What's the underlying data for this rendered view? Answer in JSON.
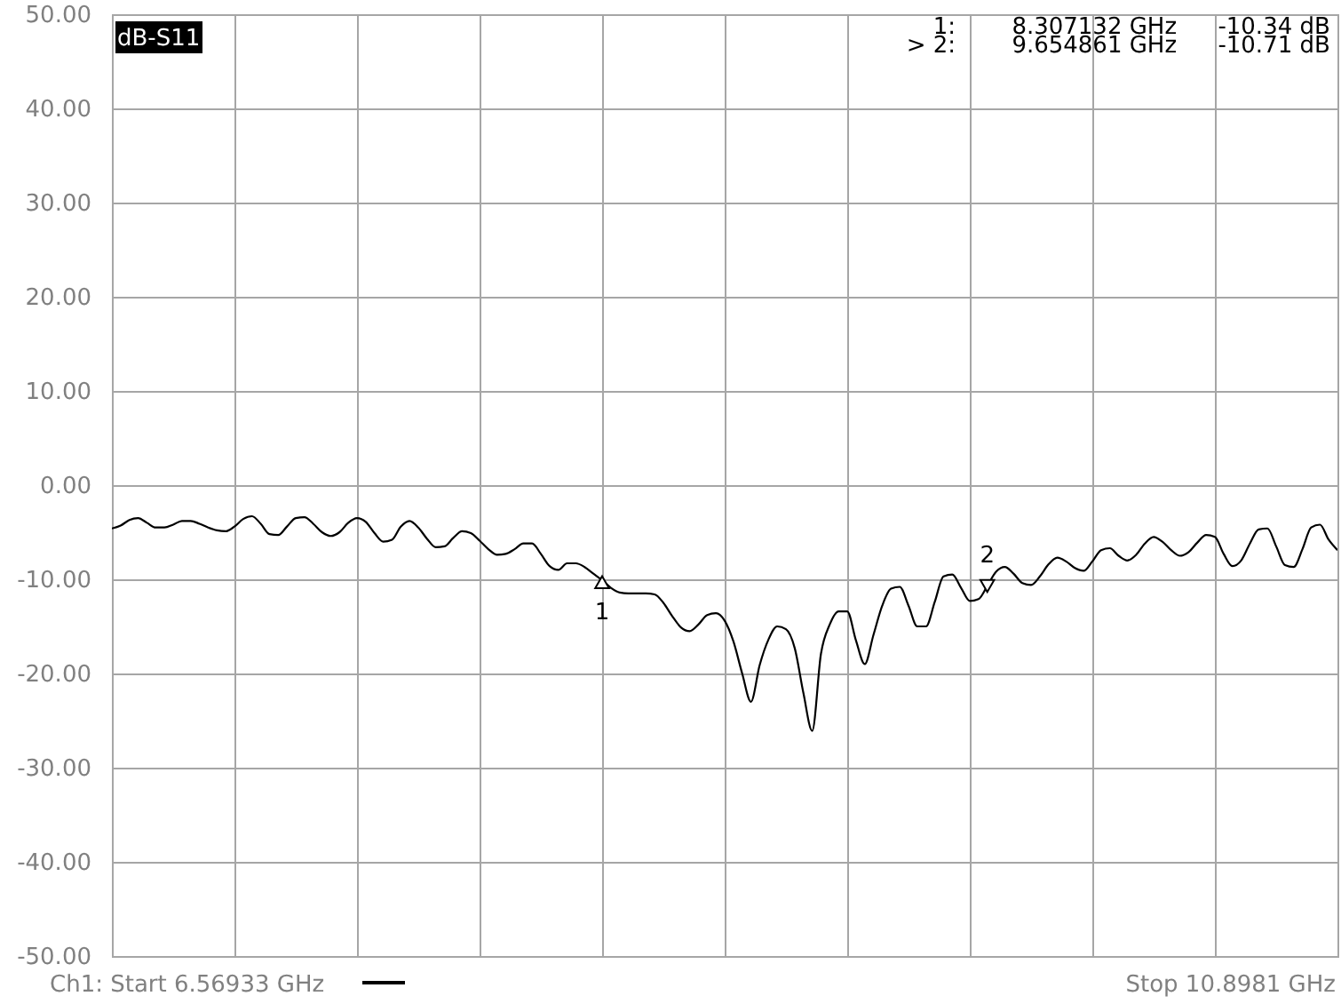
{
  "chart_data": {
    "type": "line",
    "title": "dB-S11",
    "categories": [
      null,
      null,
      null,
      null,
      null,
      null,
      null,
      null,
      null,
      null,
      null,
      null,
      null,
      null,
      null,
      null,
      null,
      null,
      null,
      null,
      null,
      null,
      null,
      null,
      null,
      null,
      null,
      null,
      null,
      null,
      null,
      null,
      null,
      null,
      null,
      null,
      null,
      null,
      null,
      null,
      null,
      null,
      null,
      null,
      null,
      null,
      null,
      null,
      null,
      null,
      null,
      null,
      null,
      null,
      null,
      null,
      null,
      null,
      null,
      null,
      null,
      null,
      null,
      null,
      null,
      null,
      null,
      null,
      null,
      null,
      null,
      null,
      null,
      null,
      null,
      null,
      null,
      null,
      null,
      null,
      null,
      null,
      null,
      null,
      null,
      null,
      null,
      null,
      null,
      null,
      null,
      null,
      null,
      null,
      null,
      null,
      null,
      null,
      null,
      null,
      null,
      null,
      null,
      null,
      null,
      null,
      null,
      null,
      null,
      null,
      null,
      null,
      null,
      null,
      null,
      null,
      null,
      null,
      null,
      null,
      null,
      null,
      null,
      null,
      null,
      null,
      null,
      null,
      null,
      null,
      null,
      null,
      null,
      null,
      null,
      null,
      null,
      null,
      null,
      null,
      null
    ],
    "ylim": [
      -50,
      50
    ],
    "yticks": [
      {
        "value": -50,
        "label": "-50.00"
      },
      {
        "value": -40,
        "label": "-40.00"
      },
      {
        "value": -30,
        "label": "-30.00"
      },
      {
        "value": -20,
        "label": "-20.00"
      },
      {
        "value": -10,
        "label": "-10.00"
      },
      {
        "value": 0,
        "label": "0.00"
      },
      {
        "value": 10,
        "label": "10.00"
      },
      {
        "value": 20,
        "label": "20.00"
      },
      {
        "value": 30,
        "label": "30.00"
      },
      {
        "value": 40,
        "label": "40.00"
      },
      {
        "value": 50,
        "label": "50.00"
      }
    ],
    "tick_labels": "y",
    "grid": true,
    "series": [
      {
        "color": "#000000",
        "line_style": "solid",
        "values": [
          -4.6,
          -4.3,
          -3.7,
          -3.5,
          -4.0,
          -4.5,
          -4.5,
          -4.2,
          -3.8,
          -3.8,
          -4.1,
          -4.5,
          -4.8,
          -4.9,
          -4.4,
          -3.6,
          -3.3,
          -4.1,
          -5.2,
          -5.3,
          -4.4,
          -3.5,
          -3.4,
          -4.1,
          -5.0,
          -5.4,
          -5.0,
          -4.0,
          -3.5,
          -3.9,
          -5.1,
          -6.0,
          -5.8,
          -4.4,
          -3.8,
          -4.5,
          -5.7,
          -6.6,
          -6.5,
          -5.6,
          -4.9,
          -5.1,
          -5.9,
          -6.8,
          -7.4,
          -7.3,
          -6.8,
          -6.2,
          -6.2,
          -7.3,
          -8.6,
          -9.0,
          -8.3,
          -8.3,
          -8.7,
          -9.4,
          -10.1,
          -10.9,
          -11.4,
          -11.5,
          -11.5,
          -11.5,
          -11.6,
          -12.5,
          -13.9,
          -15.1,
          -15.5,
          -14.8,
          -13.8,
          -13.6,
          -14.4,
          -16.6,
          -20.0,
          -23.0,
          -19.1,
          -16.4,
          -15.0,
          -15.3,
          -17.3,
          -22.1,
          -26.1,
          -17.9,
          -14.8,
          -13.4,
          -13.4,
          -16.5,
          -19.0,
          -15.9,
          -12.8,
          -11.0,
          -10.8,
          -12.8,
          -15.0,
          -15.0,
          -12.4,
          -9.7,
          -9.5,
          -10.9,
          -12.3,
          -12.1,
          -10.7,
          -9.2,
          -8.7,
          -9.4,
          -10.4,
          -10.6,
          -9.7,
          -8.4,
          -7.7,
          -8.1,
          -8.8,
          -9.1,
          -8.1,
          -6.9,
          -6.7,
          -7.5,
          -8.0,
          -7.4,
          -6.2,
          -5.5,
          -6.0,
          -6.9,
          -7.5,
          -7.1,
          -6.1,
          -5.3,
          -5.5,
          -7.3,
          -8.6,
          -8.0,
          -6.2,
          -4.7,
          -4.6,
          -6.5,
          -8.5,
          -8.7,
          -6.8,
          -4.5,
          -4.2,
          -5.8,
          -6.9
        ]
      },
      {
        "type": "scatter",
        "color": "#000000",
        "marker": "triangle",
        "values": [
          null,
          null,
          null,
          null,
          null,
          null,
          null,
          null,
          null,
          null,
          null,
          null,
          null,
          null,
          null,
          null,
          null,
          null,
          null,
          null,
          null,
          null,
          null,
          null,
          null,
          null,
          null,
          null,
          null,
          null,
          null,
          null,
          null,
          null,
          null,
          null,
          null,
          null,
          null,
          null,
          null,
          null,
          null,
          null,
          null,
          null,
          null,
          null,
          null,
          null,
          null,
          null,
          null,
          null,
          null,
          null,
          -10.3,
          null,
          null,
          null,
          null,
          null,
          null,
          null,
          null,
          null,
          null,
          null,
          null,
          null,
          null,
          null,
          null,
          null,
          null,
          null,
          null,
          null,
          null,
          null,
          null,
          null,
          null,
          null,
          null,
          null,
          null,
          null,
          null,
          null,
          null,
          null,
          null,
          null,
          null,
          null,
          null,
          null,
          null,
          null,
          -10.7,
          null,
          null,
          null,
          null,
          null,
          null,
          null,
          null,
          null,
          null,
          null,
          null,
          null,
          null,
          null,
          null,
          null,
          null,
          null,
          null,
          null,
          null,
          null,
          null,
          null,
          null,
          null,
          null,
          null,
          null,
          null,
          null,
          null,
          null,
          null,
          null,
          null,
          null,
          null,
          null
        ]
      }
    ],
    "annotations": [
      "Ch1: Start 6.56933 GHz",
      "Stop 10.8981 GHz",
      "1:",
      "8.307132 GHz",
      "-10.34 dB",
      "> 2:",
      "9.654861 GHz",
      "-10.71 dB",
      {
        "text": "1",
        "y": -10.3
      },
      {
        "text": "2",
        "y": -10.7
      }
    ]
  }
}
